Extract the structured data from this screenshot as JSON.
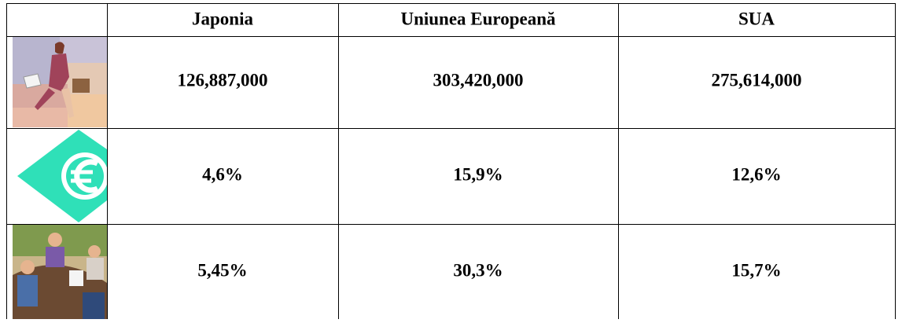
{
  "table": {
    "header": [
      "Japonia",
      "Uniunea Europeană",
      "SUA"
    ],
    "rows": [
      [
        "126,887,000",
        "303,420,000",
        "275,614,000"
      ],
      [
        "4,6%",
        "15,9%",
        "12,6%"
      ],
      [
        "5,45%",
        "30,3%",
        "15,7%"
      ]
    ]
  }
}
